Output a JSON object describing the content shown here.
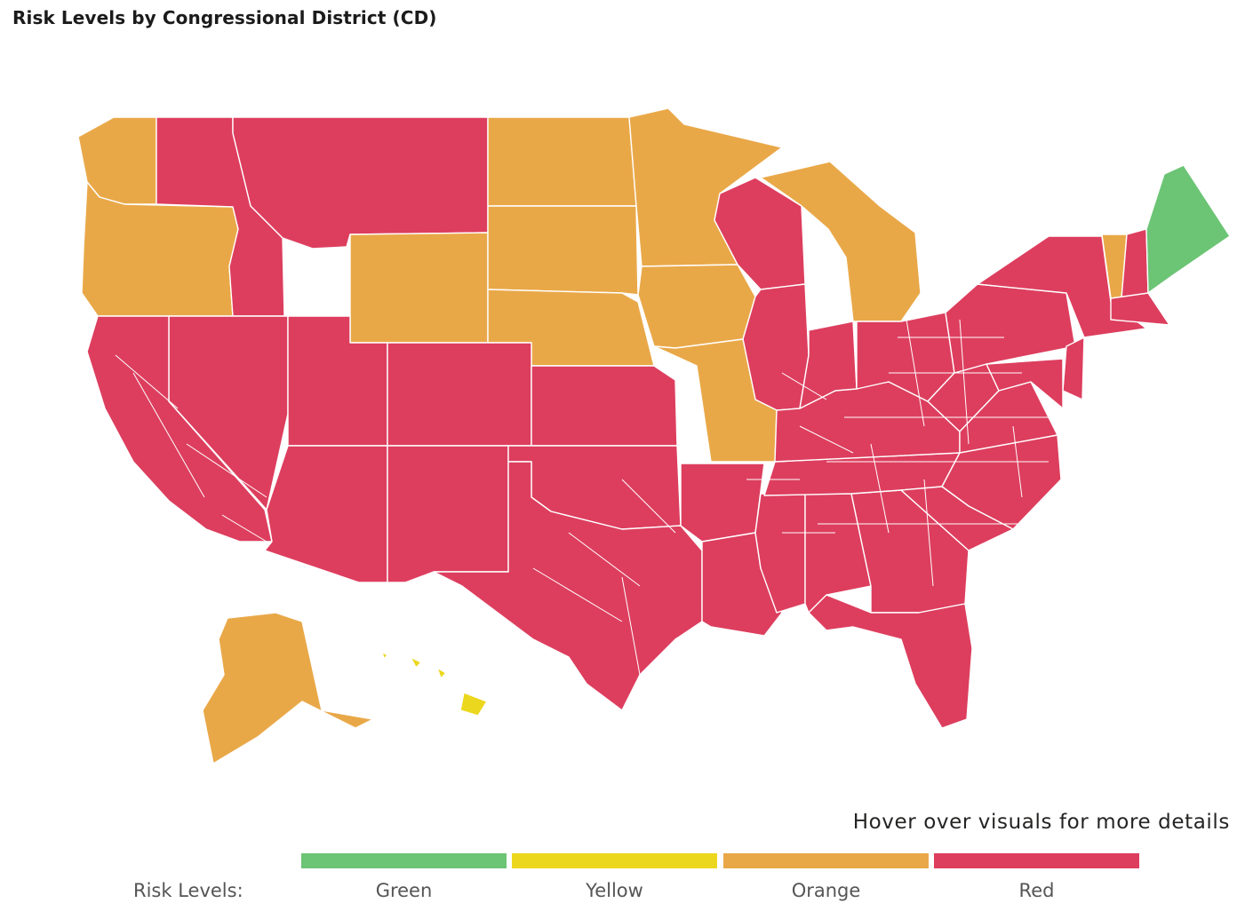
{
  "title": "Risk Levels by Congressional District (CD)",
  "hint": "Hover over visuals for more details",
  "legend": {
    "title": "Risk Levels:",
    "items": [
      {
        "label": "Green",
        "color": "#6cc475"
      },
      {
        "label": "Yellow",
        "color": "#ecd71f"
      },
      {
        "label": "Orange",
        "color": "#e9a848"
      },
      {
        "label": "Red",
        "color": "#dd3e5e"
      }
    ]
  },
  "map": {
    "regions": [
      {
        "name": "Washington",
        "level": "Orange"
      },
      {
        "name": "Oregon",
        "level": "Orange"
      },
      {
        "name": "Idaho",
        "level": "Red"
      },
      {
        "name": "Montana",
        "level": "Red"
      },
      {
        "name": "Wyoming",
        "level": "Orange"
      },
      {
        "name": "North Dakota",
        "level": "Orange"
      },
      {
        "name": "South Dakota",
        "level": "Orange"
      },
      {
        "name": "Nebraska",
        "level": "Orange"
      },
      {
        "name": "Minnesota",
        "level": "Orange"
      },
      {
        "name": "Iowa",
        "level": "Orange"
      },
      {
        "name": "Wisconsin",
        "level": "Red"
      },
      {
        "name": "Michigan",
        "level": "Orange"
      },
      {
        "name": "Illinois",
        "level": "Red"
      },
      {
        "name": "Missouri",
        "level": "Orange"
      },
      {
        "name": "Nevada",
        "level": "Red"
      },
      {
        "name": "Utah",
        "level": "Red"
      },
      {
        "name": "Colorado",
        "level": "Red"
      },
      {
        "name": "California",
        "level": "Red"
      },
      {
        "name": "Arizona",
        "level": "Red"
      },
      {
        "name": "New Mexico",
        "level": "Red"
      },
      {
        "name": "Kansas",
        "level": "Red"
      },
      {
        "name": "Oklahoma",
        "level": "Red"
      },
      {
        "name": "Texas",
        "level": "Red"
      },
      {
        "name": "Arkansas",
        "level": "Red"
      },
      {
        "name": "Louisiana",
        "level": "Red"
      },
      {
        "name": "Mississippi",
        "level": "Red"
      },
      {
        "name": "Alabama",
        "level": "Red"
      },
      {
        "name": "Georgia",
        "level": "Red"
      },
      {
        "name": "Florida",
        "level": "Red"
      },
      {
        "name": "Tennessee",
        "level": "Red"
      },
      {
        "name": "Kentucky",
        "level": "Red"
      },
      {
        "name": "Indiana",
        "level": "Red"
      },
      {
        "name": "Ohio",
        "level": "Red"
      },
      {
        "name": "West Virginia",
        "level": "Red"
      },
      {
        "name": "Virginia",
        "level": "Red"
      },
      {
        "name": "North Carolina",
        "level": "Red"
      },
      {
        "name": "South Carolina",
        "level": "Red"
      },
      {
        "name": "Pennsylvania",
        "level": "Red"
      },
      {
        "name": "New York",
        "level": "Red"
      },
      {
        "name": "Vermont",
        "level": "Orange"
      },
      {
        "name": "New Hampshire",
        "level": "Red"
      },
      {
        "name": "Maine",
        "level": "Green"
      },
      {
        "name": "Massachusetts",
        "level": "Red"
      },
      {
        "name": "New Jersey",
        "level": "Red"
      },
      {
        "name": "Maryland",
        "level": "Red"
      },
      {
        "name": "Alaska",
        "level": "Orange"
      },
      {
        "name": "Hawaii",
        "level": "Yellow"
      }
    ]
  }
}
